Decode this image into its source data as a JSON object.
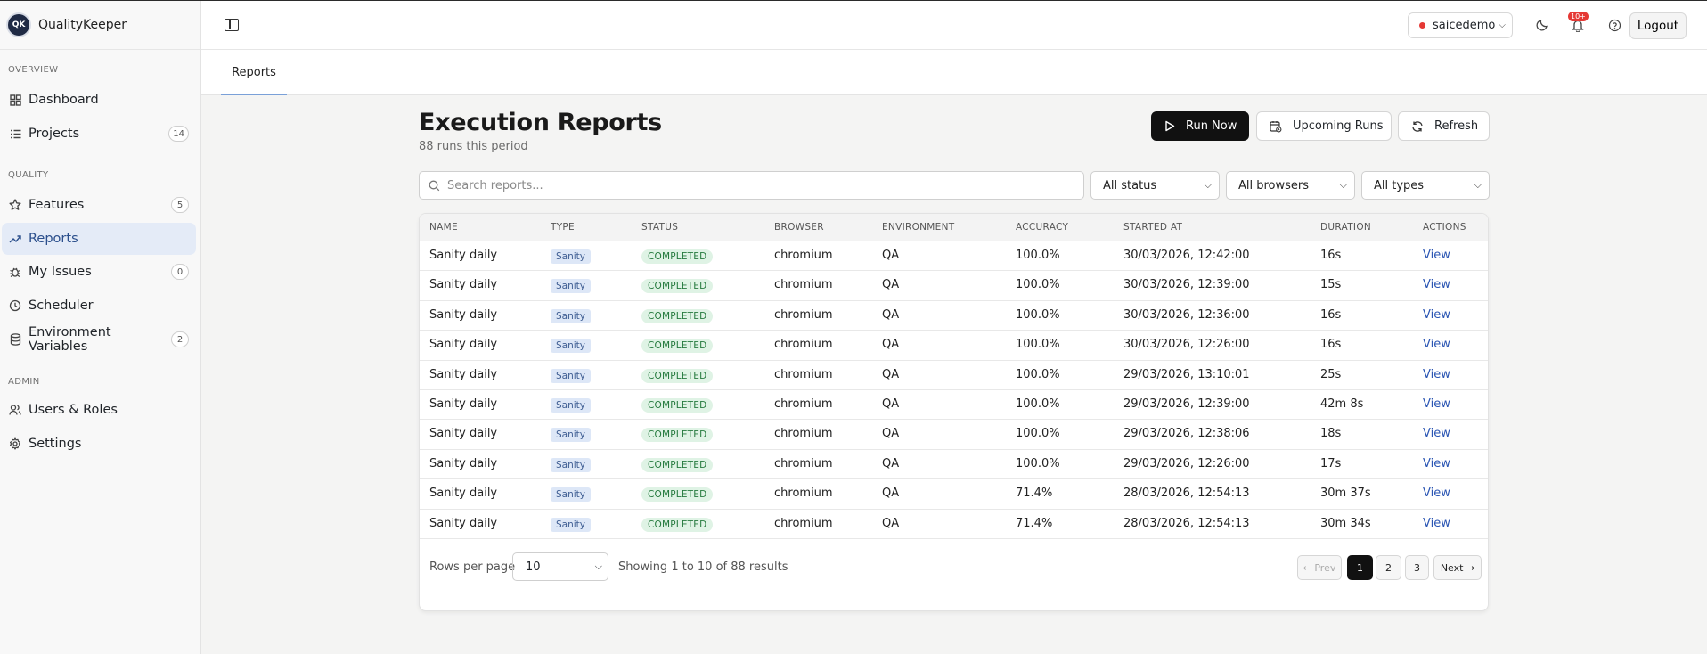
{
  "app": {
    "name": "QualityKeeper",
    "logo_text": "QK"
  },
  "sidebar": {
    "sections": [
      {
        "label": "OVERVIEW"
      },
      {
        "label": "QUALITY"
      },
      {
        "label": "ADMIN"
      }
    ],
    "items": [
      {
        "label": "Dashboard",
        "icon": "grid-icon",
        "badge": ""
      },
      {
        "label": "Projects",
        "icon": "list-icon",
        "badge": "14"
      },
      {
        "label": "Features",
        "icon": "star-icon",
        "badge": "5"
      },
      {
        "label": "Reports",
        "icon": "trend-icon",
        "badge": "",
        "active": true
      },
      {
        "label": "My Issues",
        "icon": "bug-icon",
        "badge": "0"
      },
      {
        "label": "Scheduler",
        "icon": "clock-icon",
        "badge": ""
      },
      {
        "label": "Environment Variables",
        "icon": "database-icon",
        "badge": "2"
      },
      {
        "label": "Users & Roles",
        "icon": "users-icon",
        "badge": ""
      },
      {
        "label": "Settings",
        "icon": "gear-icon",
        "badge": ""
      }
    ]
  },
  "header": {
    "tenant": "saicedemo",
    "notifications": "10+",
    "logout": "Logout"
  },
  "tabs": [
    {
      "label": "Reports"
    }
  ],
  "main": {
    "title": "Execution Reports",
    "subtitle": "88 runs this period",
    "actions": {
      "run_now": "Run Now",
      "upcoming": "Upcoming Runs",
      "refresh": "Refresh"
    },
    "search_placeholder": "Search reports...",
    "filters": {
      "status": "All status",
      "browsers": "All browsers",
      "types": "All types"
    }
  },
  "table": {
    "columns": [
      "NAME",
      "TYPE",
      "STATUS",
      "BROWSER",
      "ENVIRONMENT",
      "ACCURACY",
      "STARTED AT",
      "DURATION",
      "ACTIONS"
    ],
    "rows": [
      {
        "name": "Sanity daily",
        "type": "Sanity",
        "status": "COMPLETED",
        "browser": "chromium",
        "env": "QA",
        "accuracy": "100.0%",
        "started": "30/03/2026, 12:42:00",
        "duration": "16s",
        "action": "View"
      },
      {
        "name": "Sanity daily",
        "type": "Sanity",
        "status": "COMPLETED",
        "browser": "chromium",
        "env": "QA",
        "accuracy": "100.0%",
        "started": "30/03/2026, 12:39:00",
        "duration": "15s",
        "action": "View"
      },
      {
        "name": "Sanity daily",
        "type": "Sanity",
        "status": "COMPLETED",
        "browser": "chromium",
        "env": "QA",
        "accuracy": "100.0%",
        "started": "30/03/2026, 12:36:00",
        "duration": "16s",
        "action": "View"
      },
      {
        "name": "Sanity daily",
        "type": "Sanity",
        "status": "COMPLETED",
        "browser": "chromium",
        "env": "QA",
        "accuracy": "100.0%",
        "started": "30/03/2026, 12:26:00",
        "duration": "16s",
        "action": "View"
      },
      {
        "name": "Sanity daily",
        "type": "Sanity",
        "status": "COMPLETED",
        "browser": "chromium",
        "env": "QA",
        "accuracy": "100.0%",
        "started": "29/03/2026, 13:10:01",
        "duration": "25s",
        "action": "View"
      },
      {
        "name": "Sanity daily",
        "type": "Sanity",
        "status": "COMPLETED",
        "browser": "chromium",
        "env": "QA",
        "accuracy": "100.0%",
        "started": "29/03/2026, 12:39:00",
        "duration": "42m 8s",
        "action": "View"
      },
      {
        "name": "Sanity daily",
        "type": "Sanity",
        "status": "COMPLETED",
        "browser": "chromium",
        "env": "QA",
        "accuracy": "100.0%",
        "started": "29/03/2026, 12:38:06",
        "duration": "18s",
        "action": "View"
      },
      {
        "name": "Sanity daily",
        "type": "Sanity",
        "status": "COMPLETED",
        "browser": "chromium",
        "env": "QA",
        "accuracy": "100.0%",
        "started": "29/03/2026, 12:26:00",
        "duration": "17s",
        "action": "View"
      },
      {
        "name": "Sanity daily",
        "type": "Sanity",
        "status": "COMPLETED",
        "browser": "chromium",
        "env": "QA",
        "accuracy": "71.4%",
        "started": "28/03/2026, 12:54:13",
        "duration": "30m 37s",
        "action": "View"
      },
      {
        "name": "Sanity daily",
        "type": "Sanity",
        "status": "COMPLETED",
        "browser": "chromium",
        "env": "QA",
        "accuracy": "71.4%",
        "started": "28/03/2026, 12:54:13",
        "duration": "30m 34s",
        "action": "View"
      }
    ]
  },
  "pagination": {
    "rows_per_page_label": "Rows per page",
    "rows_per_page": "10",
    "showing": "Showing 1 to 10 of 88 results",
    "prev": "← Prev",
    "pages": [
      "1",
      "2",
      "3"
    ],
    "current": "1",
    "next": "Next →"
  },
  "colors": {
    "accent": "#2a55b3",
    "primary_button": "#111111",
    "status_completed": "#257a3e",
    "notification": "#e53935"
  }
}
